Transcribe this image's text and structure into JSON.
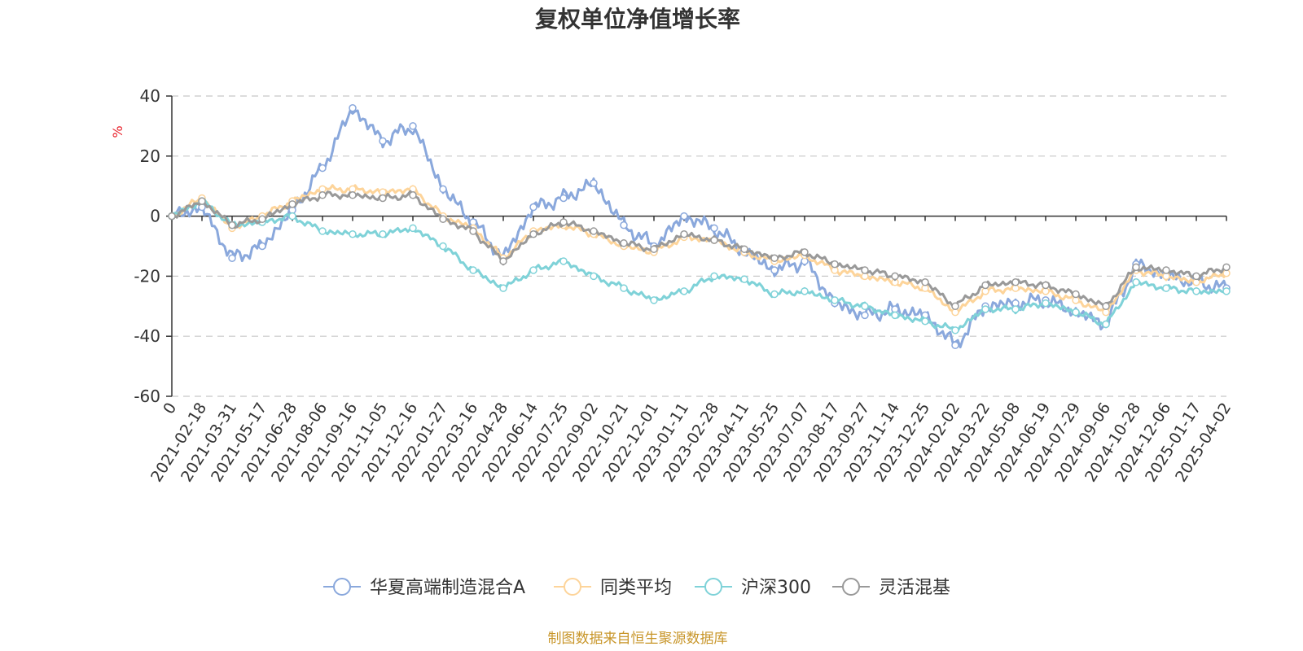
{
  "chart_data": {
    "type": "line",
    "title": "复权单位净值增长率",
    "ylabel": "%",
    "xlabel": "",
    "ylim": [
      -60,
      40
    ],
    "yticks": [
      "40",
      "20",
      "0",
      "-20",
      "-40",
      "-60"
    ],
    "ytick_values": [
      40,
      20,
      0,
      -20,
      -40,
      -60
    ],
    "categories": [
      "0",
      "2021-02-18",
      "2021-03-31",
      "2021-05-17",
      "2021-06-28",
      "2021-08-06",
      "2021-09-16",
      "2021-11-05",
      "2021-12-16",
      "2022-01-27",
      "2022-03-16",
      "2022-04-28",
      "2022-06-14",
      "2022-07-25",
      "2022-09-02",
      "2022-10-21",
      "2022-12-01",
      "2023-01-11",
      "2023-02-28",
      "2023-04-11",
      "2023-05-25",
      "2023-07-07",
      "2023-08-17",
      "2023-09-27",
      "2023-11-14",
      "2023-12-25",
      "2024-02-02",
      "2024-03-22",
      "2024-05-08",
      "2024-06-19",
      "2024-07-29",
      "2024-09-06",
      "2024-10-28",
      "2024-12-06",
      "2025-01-17",
      "2025-04-02"
    ],
    "grid": true,
    "legend_position": "bottom-center",
    "series": [
      {
        "name": "华夏高端制造混合A",
        "color": "#8aa8dc",
        "values": [
          0,
          3,
          -14,
          -10,
          2,
          16,
          36,
          25,
          30,
          9,
          -2,
          -14,
          3,
          6,
          11,
          -3,
          -10,
          0,
          -4,
          -12,
          -18,
          -15,
          -29,
          -33,
          -31,
          -33,
          -43,
          -30,
          -29,
          -28,
          -32,
          -36,
          -16,
          -20,
          -22,
          -24
        ]
      },
      {
        "name": "同类平均",
        "color": "#fdd49a",
        "values": [
          0,
          6,
          -4,
          0,
          5,
          9,
          9,
          8,
          9,
          0,
          -4,
          -14,
          -5,
          -3,
          -6,
          -10,
          -12,
          -7,
          -8,
          -12,
          -15,
          -13,
          -18,
          -20,
          -22,
          -24,
          -32,
          -25,
          -24,
          -25,
          -28,
          -32,
          -18,
          -20,
          -22,
          -19
        ]
      },
      {
        "name": "沪深300",
        "color": "#7fd2d8",
        "values": [
          0,
          5,
          -3,
          -2,
          0,
          -5,
          -6,
          -6,
          -4,
          -10,
          -18,
          -24,
          -18,
          -15,
          -20,
          -24,
          -28,
          -25,
          -20,
          -21,
          -26,
          -25,
          -28,
          -30,
          -33,
          -35,
          -38,
          -31,
          -31,
          -29,
          -32,
          -36,
          -22,
          -24,
          -25,
          -25
        ]
      },
      {
        "name": "灵活混基",
        "color": "#999999",
        "values": [
          0,
          5,
          -3,
          -1,
          4,
          7,
          7,
          6,
          7,
          -1,
          -5,
          -15,
          -6,
          -2,
          -5,
          -9,
          -11,
          -6,
          -8,
          -11,
          -14,
          -12,
          -16,
          -18,
          -20,
          -22,
          -30,
          -23,
          -22,
          -23,
          -26,
          -30,
          -17,
          -18,
          -20,
          -17
        ]
      }
    ]
  },
  "legend": {
    "items": [
      "华夏高端制造混合A",
      "同类平均",
      "沪深300",
      "灵活混基"
    ]
  },
  "source_note": "制图数据来自恒生聚源数据库"
}
